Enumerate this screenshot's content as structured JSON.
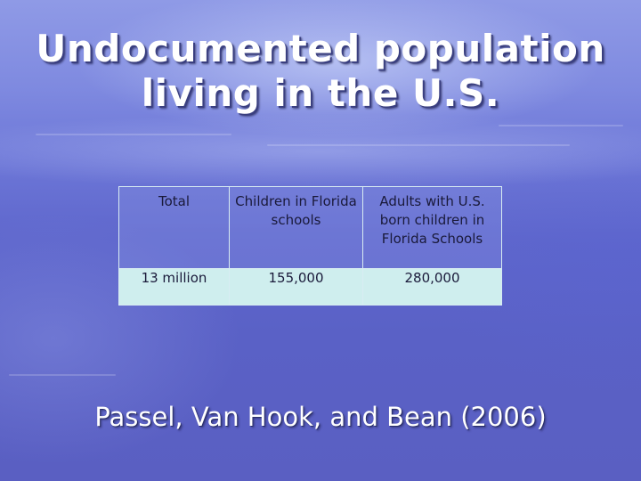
{
  "slide": {
    "title_line1": "Undocumented population",
    "title_line2": "living in the U.S.",
    "table": {
      "headers": [
        "Total",
        "Children in Florida schools",
        "Adults with U.S. born children in Florida Schools"
      ],
      "rows": [
        [
          "13 million",
          "155,000",
          "280,000"
        ]
      ]
    },
    "citation": "Passel, Van Hook, and Bean (2006)"
  },
  "colors": {
    "background_top": "#8f9ae6",
    "background_bottom": "#5a5fc2",
    "title_text": "#ffffff",
    "table_body_fill": "#cfeeee",
    "table_header_fill": "#9aa1e0",
    "table_text": "#1a1a3a"
  }
}
